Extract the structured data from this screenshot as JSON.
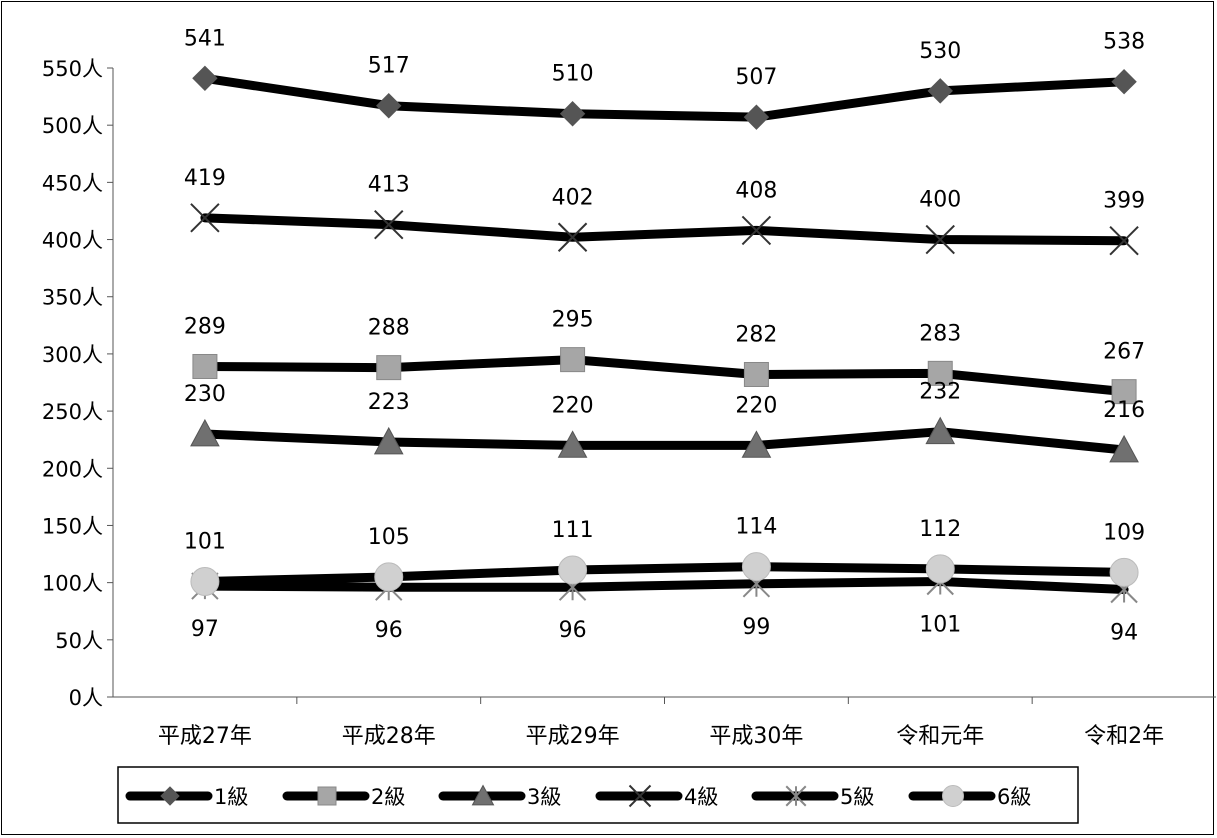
{
  "chart_data": {
    "type": "line",
    "categories": [
      "平成27年",
      "平成28年",
      "平成29年",
      "平成30年",
      "令和元年",
      "令和2年"
    ],
    "ylim": [
      0,
      550
    ],
    "yticks": [
      0,
      50,
      100,
      150,
      200,
      250,
      300,
      350,
      400,
      450,
      500,
      550
    ],
    "yunit": "人",
    "ytick_labels": [
      "0人",
      "50人",
      "100人",
      "150人",
      "200人",
      "250人",
      "300人",
      "350人",
      "400人",
      "450人",
      "500人",
      "550人"
    ],
    "grid": false,
    "legend_position": "bottom",
    "series": [
      {
        "name": "1級",
        "values": [
          541,
          517,
          510,
          507,
          530,
          538
        ],
        "marker": "diamond",
        "marker_color": "#555555",
        "label_position": "above",
        "labels": [
          "541",
          "517",
          "510",
          "507",
          "530",
          "538"
        ]
      },
      {
        "name": "2級",
        "values": [
          289,
          288,
          295,
          282,
          283,
          267
        ],
        "marker": "square",
        "marker_color": "#a6a6a6",
        "label_position": "above",
        "labels": [
          "289",
          "288",
          "295",
          "282",
          "283",
          "267"
        ]
      },
      {
        "name": "3級",
        "values": [
          230,
          223,
          220,
          220,
          232,
          216
        ],
        "marker": "triangle",
        "marker_color": "#707070",
        "label_position": "above",
        "labels": [
          "230",
          "223",
          "220",
          "220",
          "232",
          "216"
        ]
      },
      {
        "name": "4級",
        "values": [
          419,
          413,
          402,
          408,
          400,
          399
        ],
        "marker": "x",
        "marker_color": "#333333",
        "label_position": "above",
        "labels": [
          "419",
          "413",
          "402",
          "408",
          "400",
          "399"
        ]
      },
      {
        "name": "5級",
        "values": [
          97,
          96,
          96,
          99,
          101,
          94
        ],
        "marker": "star",
        "marker_color": "#888888",
        "label_position": "below",
        "labels": [
          "97",
          "96",
          "96",
          "99",
          "101",
          "94"
        ]
      },
      {
        "name": "6級",
        "values": [
          101,
          105,
          111,
          114,
          112,
          109
        ],
        "marker": "circle",
        "marker_color": "#d0d0d0",
        "label_position": "above",
        "labels": [
          "101",
          "105",
          "111",
          "114",
          "112",
          "109"
        ]
      }
    ]
  }
}
